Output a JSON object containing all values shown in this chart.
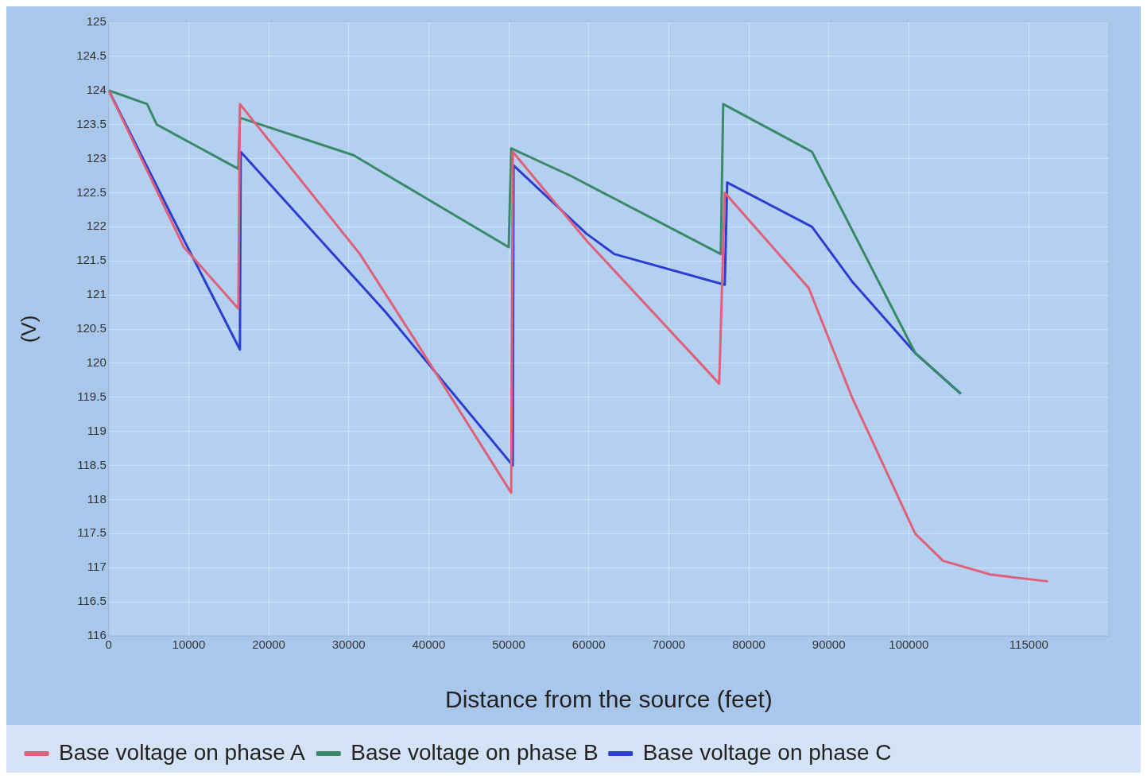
{
  "chart_data": {
    "type": "line",
    "xlabel": "Distance from the source (feet)",
    "ylabel": "(V)",
    "xlim": [
      0,
      125000
    ],
    "xticks": [
      0,
      10000,
      20000,
      30000,
      40000,
      50000,
      60000,
      70000,
      80000,
      90000,
      100000,
      115000
    ],
    "ylim": [
      116,
      125
    ],
    "yticks": [
      116,
      116.5,
      117,
      117.5,
      118,
      118.5,
      119,
      119.5,
      120,
      120.5,
      121,
      121.5,
      122,
      122.5,
      123,
      123.5,
      124,
      124.5,
      125
    ],
    "grid": true,
    "legend": "bottom",
    "marker": "none",
    "line_style": "solid",
    "series": [
      {
        "name": "Base voltage on phase A",
        "color": "#e0607a",
        "x": [
          0,
          9400,
          16200,
          16400,
          31400,
          38500,
          50300,
          50500,
          59700,
          76300,
          77000,
          87500,
          92900,
          100800,
          104300,
          110200,
          117400
        ],
        "values": [
          124.0,
          121.7,
          120.8,
          123.8,
          121.6,
          120.3,
          118.1,
          123.1,
          121.8,
          119.7,
          122.5,
          121.1,
          119.5,
          117.5,
          117.1,
          116.9,
          116.8
        ]
      },
      {
        "name": "Base voltage on phase B",
        "color": "#3a8a6a",
        "x": [
          0,
          4800,
          6000,
          16200,
          16400,
          30600,
          50000,
          50300,
          57700,
          76500,
          76800,
          87900,
          100800,
          106500
        ],
        "values": [
          124.0,
          123.8,
          123.5,
          122.85,
          123.6,
          123.05,
          121.7,
          123.15,
          122.75,
          121.6,
          123.8,
          123.1,
          120.15,
          119.55
        ]
      },
      {
        "name": "Base voltage on phase C",
        "color": "#2a3fd0",
        "x": [
          0,
          9000,
          16400,
          16500,
          34600,
          50500,
          50600,
          59700,
          63200,
          77000,
          77300,
          87900,
          92900,
          100800,
          106500
        ],
        "values": [
          124.0,
          121.9,
          120.2,
          123.1,
          120.75,
          118.5,
          122.9,
          121.9,
          121.6,
          121.15,
          122.65,
          122.0,
          121.2,
          120.15,
          119.55
        ]
      }
    ]
  }
}
